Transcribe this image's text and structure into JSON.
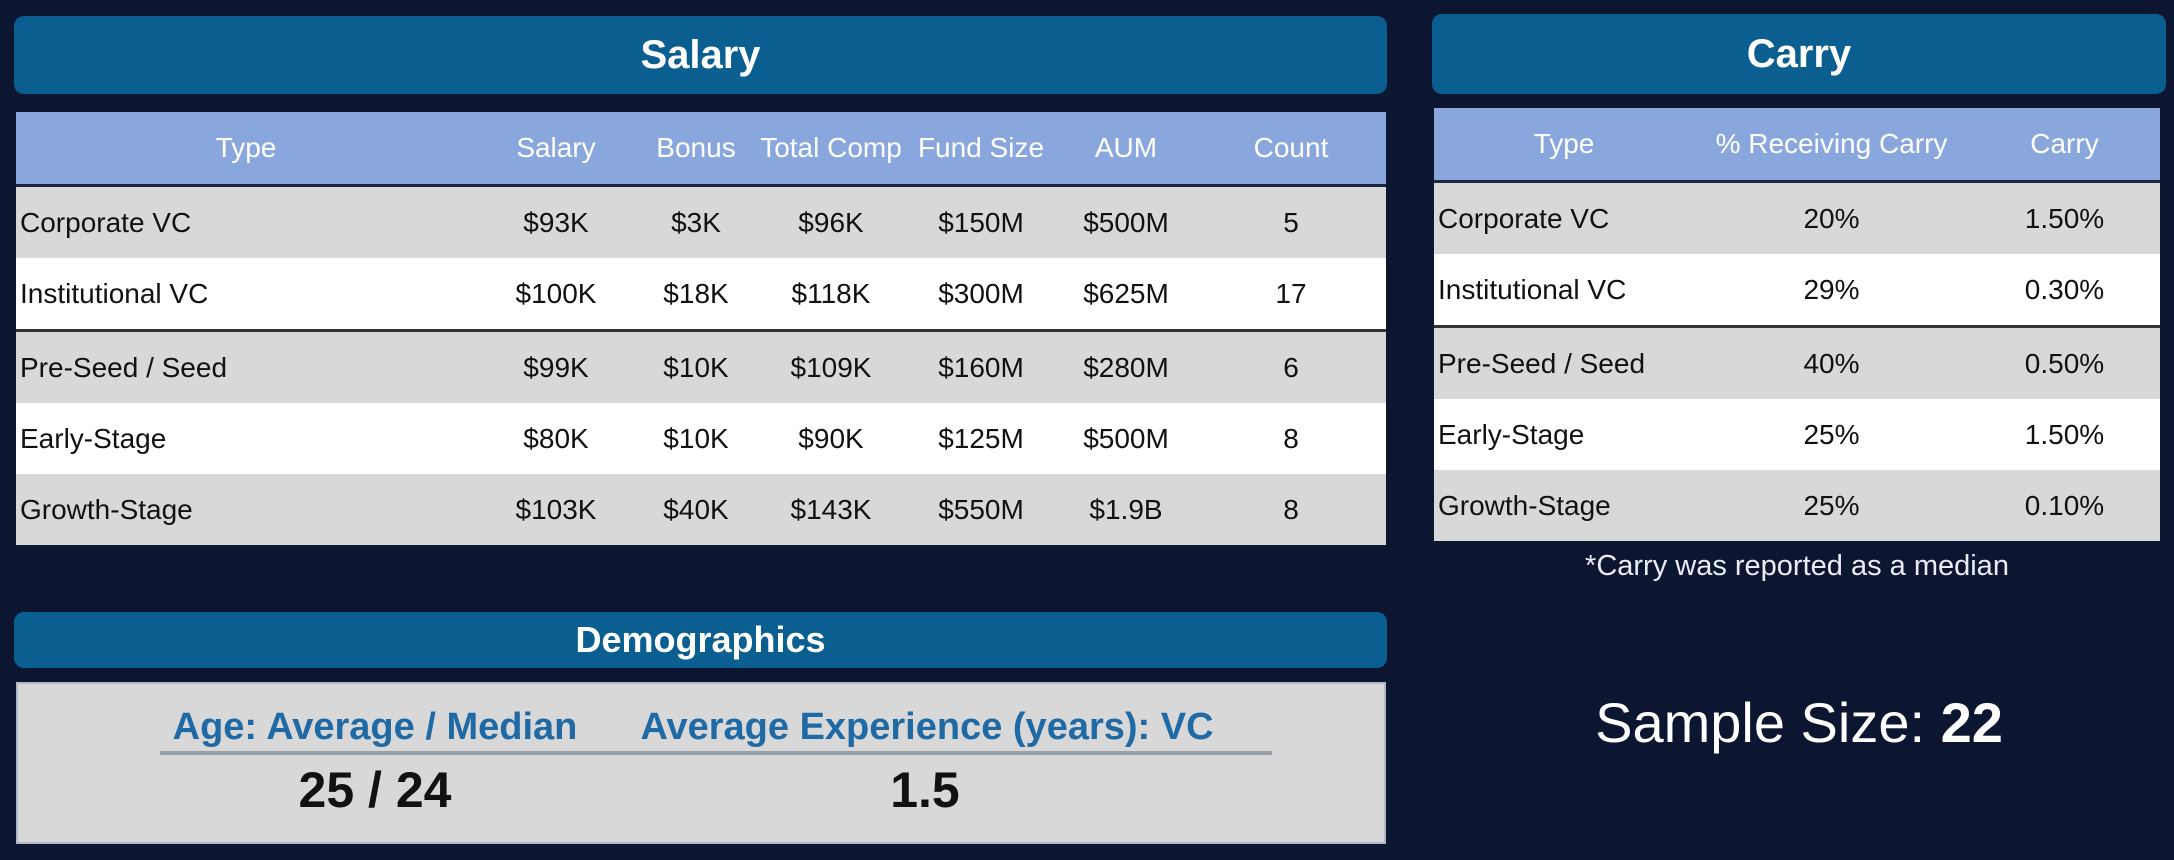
{
  "salary": {
    "title": "Salary",
    "columns": [
      "Type",
      "Salary",
      "Bonus",
      "Total Comp",
      "Fund Size",
      "AUM",
      "Count"
    ],
    "rows": [
      [
        "Corporate VC",
        "$93K",
        "$3K",
        "$96K",
        "$150M",
        "$500M",
        "5"
      ],
      [
        "Institutional VC",
        "$100K",
        "$18K",
        "$118K",
        "$300M",
        "$625M",
        "17"
      ],
      [
        "Pre-Seed / Seed",
        "$99K",
        "$10K",
        "$109K",
        "$160M",
        "$280M",
        "6"
      ],
      [
        "Early-Stage",
        "$80K",
        "$10K",
        "$90K",
        "$125M",
        "$500M",
        "8"
      ],
      [
        "Growth-Stage",
        "$103K",
        "$40K",
        "$143K",
        "$550M",
        "$1.9B",
        "8"
      ]
    ]
  },
  "carry": {
    "title": "Carry",
    "columns": [
      "Type",
      "% Receiving Carry",
      "Carry"
    ],
    "rows": [
      [
        "Corporate VC",
        "20%",
        "1.50%"
      ],
      [
        "Institutional VC",
        "29%",
        "0.30%"
      ],
      [
        "Pre-Seed / Seed",
        "40%",
        "0.50%"
      ],
      [
        "Early-Stage",
        "25%",
        "1.50%"
      ],
      [
        "Growth-Stage",
        "25%",
        "0.10%"
      ]
    ],
    "note": "*Carry was reported as a median"
  },
  "demographics": {
    "title": "Demographics",
    "age_label": "Age: Average / Median",
    "age_value": "25 / 24",
    "experience_label": "Average Experience (years): VC",
    "experience_value": "1.5"
  },
  "sample_size": {
    "label": "Sample Size:",
    "value": "22"
  },
  "colors": {
    "background": "#0c1630",
    "banner": "#0a5f90",
    "header_row": "#8aa7dd",
    "row_grey": "#d8d8d8",
    "row_white": "#ffffff",
    "demo_label": "#1f6aa5"
  }
}
